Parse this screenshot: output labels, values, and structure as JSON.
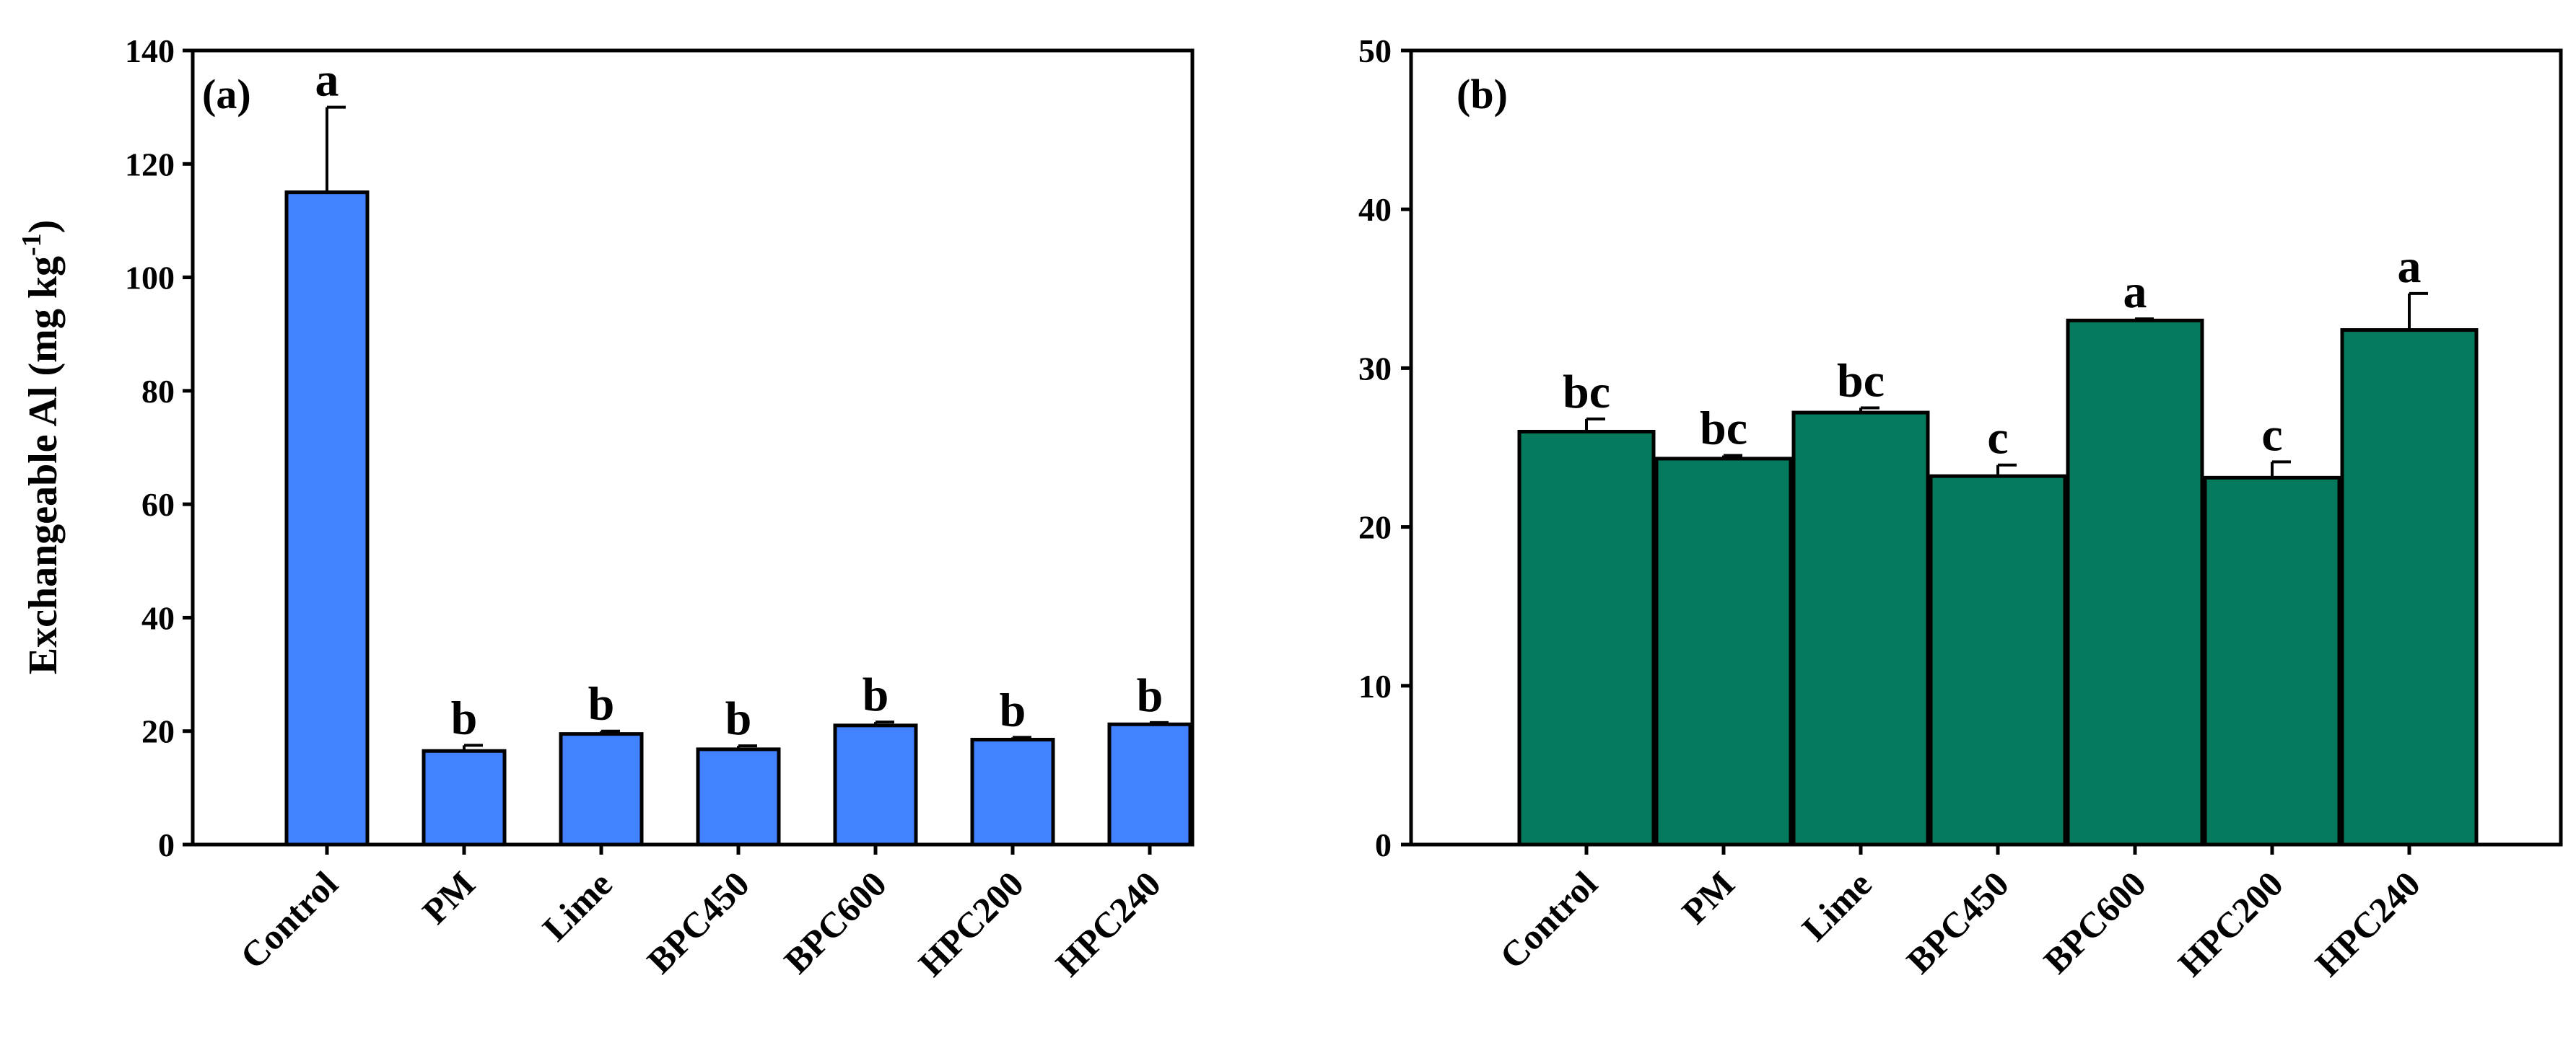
{
  "chart_data": [
    {
      "type": "bar",
      "panel_label": "(a)",
      "title": "",
      "xlabel": "",
      "ylabel_main": "Exchangeable Al (mg kg",
      "ylabel_sup": "-1",
      "ylabel_close": ")",
      "ylim": [
        0,
        140
      ],
      "yticks": [
        0,
        20,
        40,
        60,
        80,
        100,
        120,
        140
      ],
      "bar_color": "#4282ff",
      "categories": [
        "Control",
        "PM",
        "Lime",
        "BPC450",
        "BPC600",
        "HPC200",
        "HPC240"
      ],
      "values": [
        115,
        16.5,
        19.5,
        16.8,
        21,
        18.5,
        21.2
      ],
      "errors": [
        15,
        1,
        0.5,
        0.6,
        0.6,
        0.4,
        0.3
      ],
      "letters": [
        "a",
        "b",
        "b",
        "b",
        "b",
        "b",
        "b"
      ]
    },
    {
      "type": "bar",
      "panel_label": "(b)",
      "title": "",
      "xlabel": "",
      "ylabel": "",
      "ylim": [
        0,
        50
      ],
      "yticks": [
        0,
        10,
        20,
        30,
        40,
        50
      ],
      "bar_color": "#057a5c",
      "categories": [
        "Control",
        "PM",
        "Lime",
        "BPC450",
        "BPC600",
        "HPC200",
        "HPC240"
      ],
      "values": [
        26,
        24.3,
        27.2,
        23.2,
        33,
        23.1,
        32.4
      ],
      "errors": [
        0.8,
        0.2,
        0.3,
        0.7,
        0.1,
        1.0,
        2.3
      ],
      "letters": [
        "bc",
        "bc",
        "bc",
        "c",
        "a",
        "c",
        "a"
      ]
    }
  ]
}
